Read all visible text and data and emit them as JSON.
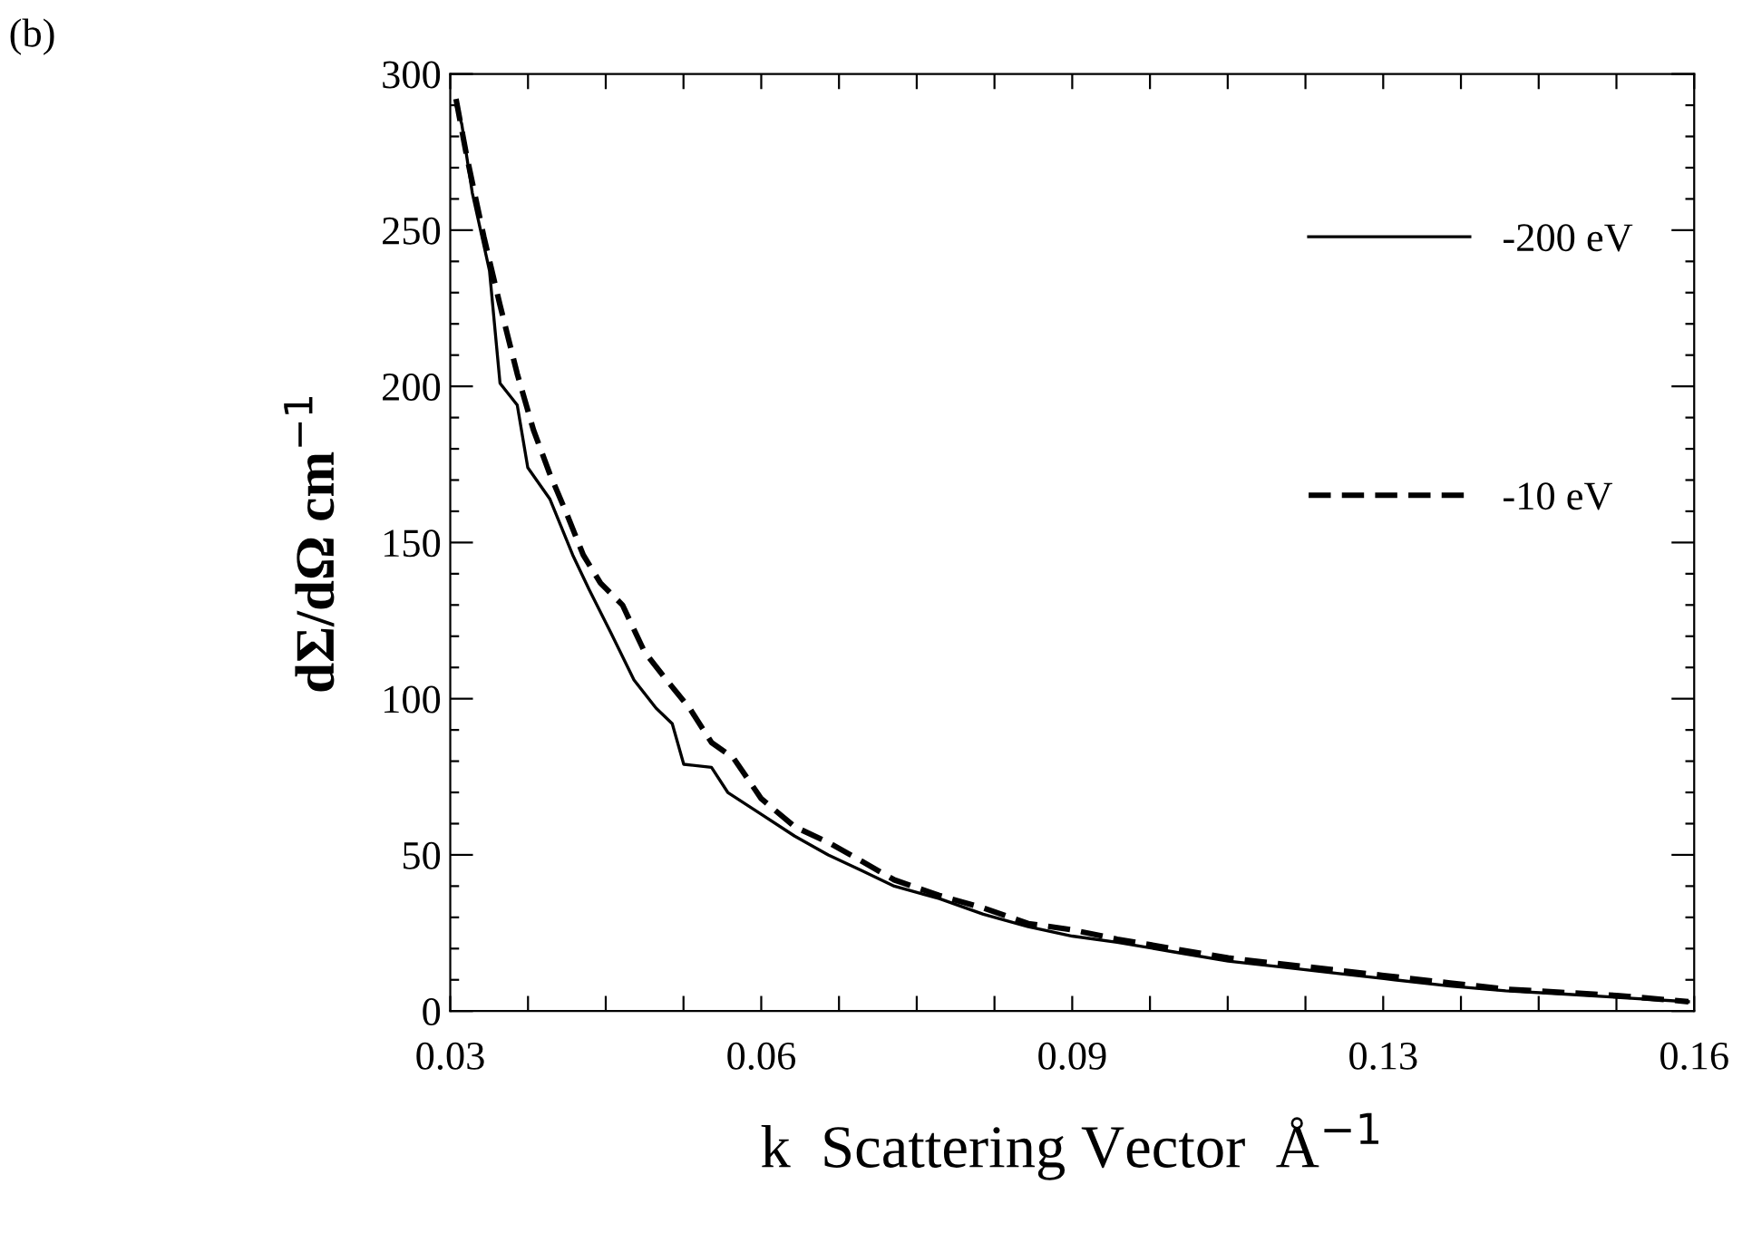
{
  "chart_data": {
    "type": "line",
    "xlabel": "k  Scattering Vector  Å$^{−1}$",
    "ylabel": "dΣ/dΩ cm$^{−1}$",
    "annotations": [
      "(b)"
    ],
    "xlim": [
      0.03,
      0.16
    ],
    "ylim": [
      0,
      300
    ],
    "xticks": [
      {
        "value": 0.03,
        "label": "0.03"
      },
      {
        "value": 0.038125,
        "label": null
      },
      {
        "value": 0.04625,
        "label": null
      },
      {
        "value": 0.054375,
        "label": null
      },
      {
        "value": 0.0625,
        "label": "0.06"
      },
      {
        "value": 0.070625,
        "label": null
      },
      {
        "value": 0.07875,
        "label": null
      },
      {
        "value": 0.086875,
        "label": null
      },
      {
        "value": 0.095,
        "label": "0.09"
      },
      {
        "value": 0.103125,
        "label": null
      },
      {
        "value": 0.11125,
        "label": null
      },
      {
        "value": 0.119375,
        "label": null
      },
      {
        "value": 0.1275,
        "label": "0.13"
      },
      {
        "value": 0.135625,
        "label": null
      },
      {
        "value": 0.14375,
        "label": null
      },
      {
        "value": 0.151875,
        "label": null
      },
      {
        "value": 0.16,
        "label": "0.16"
      }
    ],
    "yticks": [
      0,
      {
        "value": 10,
        "label": null
      },
      {
        "value": 20,
        "label": null
      },
      {
        "value": 30,
        "label": null
      },
      {
        "value": 40,
        "label": null
      },
      50,
      {
        "value": 60,
        "label": null
      },
      {
        "value": 70,
        "label": null
      },
      {
        "value": 80,
        "label": null
      },
      {
        "value": 90,
        "label": null
      },
      100,
      {
        "value": 110,
        "label": null
      },
      {
        "value": 120,
        "label": null
      },
      {
        "value": 130,
        "label": null
      },
      {
        "value": 140,
        "label": null
      },
      150,
      {
        "value": 160,
        "label": null
      },
      {
        "value": 170,
        "label": null
      },
      {
        "value": 180,
        "label": null
      },
      {
        "value": 190,
        "label": null
      },
      200,
      {
        "value": 210,
        "label": null
      },
      {
        "value": 220,
        "label": null
      },
      {
        "value": 230,
        "label": null
      },
      {
        "value": 240,
        "label": null
      },
      250,
      {
        "value": 260,
        "label": null
      },
      {
        "value": 270,
        "label": null
      },
      {
        "value": 280,
        "label": null
      },
      {
        "value": 290,
        "label": null
      },
      300
    ],
    "grid": false,
    "legend": "top right",
    "series": [
      {
        "name": "-200 eV",
        "color": "#000000",
        "line_style": "solid",
        "x": [
          0.0306,
          0.0312,
          0.0323,
          0.0341,
          0.0352,
          0.037,
          0.0381,
          0.0404,
          0.0428,
          0.0445,
          0.0468,
          0.0492,
          0.0515,
          0.0532,
          0.0544,
          0.0573,
          0.059,
          0.0625,
          0.066,
          0.0695,
          0.073,
          0.0764,
          0.0811,
          0.0857,
          0.0904,
          0.095,
          0.0997,
          0.1055,
          0.1113,
          0.1171,
          0.1229,
          0.1287,
          0.1345,
          0.1403,
          0.1461,
          0.1519,
          0.1594
        ],
        "values": [
          290,
          284,
          262,
          237,
          201,
          194,
          174,
          164,
          146,
          135,
          121,
          106,
          97,
          92,
          79,
          78,
          70,
          63,
          56,
          50,
          45,
          40,
          36,
          31,
          27,
          24,
          22,
          19,
          16,
          14,
          12,
          10,
          8,
          6.5,
          5.5,
          4.4,
          3
        ]
      },
      {
        "name": "-10 eV",
        "color": "#000000",
        "line_style": "dashed",
        "x": [
          0.0306,
          0.0317,
          0.0335,
          0.0352,
          0.037,
          0.0387,
          0.0404,
          0.0422,
          0.0439,
          0.0457,
          0.048,
          0.0503,
          0.0526,
          0.055,
          0.0573,
          0.0596,
          0.0625,
          0.066,
          0.0695,
          0.073,
          0.0764,
          0.0811,
          0.0857,
          0.0904,
          0.095,
          0.0997,
          0.1055,
          0.1113,
          0.1171,
          0.1229,
          0.1287,
          0.1345,
          0.1403,
          0.1461,
          0.1519,
          0.1594
        ],
        "values": [
          292,
          274,
          248,
          226,
          204,
          186,
          172,
          159,
          146,
          137,
          130,
          115,
          106,
          97,
          86,
          81,
          68,
          59,
          54,
          48,
          42,
          37,
          33,
          28,
          26,
          23,
          20,
          17,
          15,
          13,
          11,
          9,
          7,
          6,
          5,
          3
        ]
      }
    ]
  }
}
